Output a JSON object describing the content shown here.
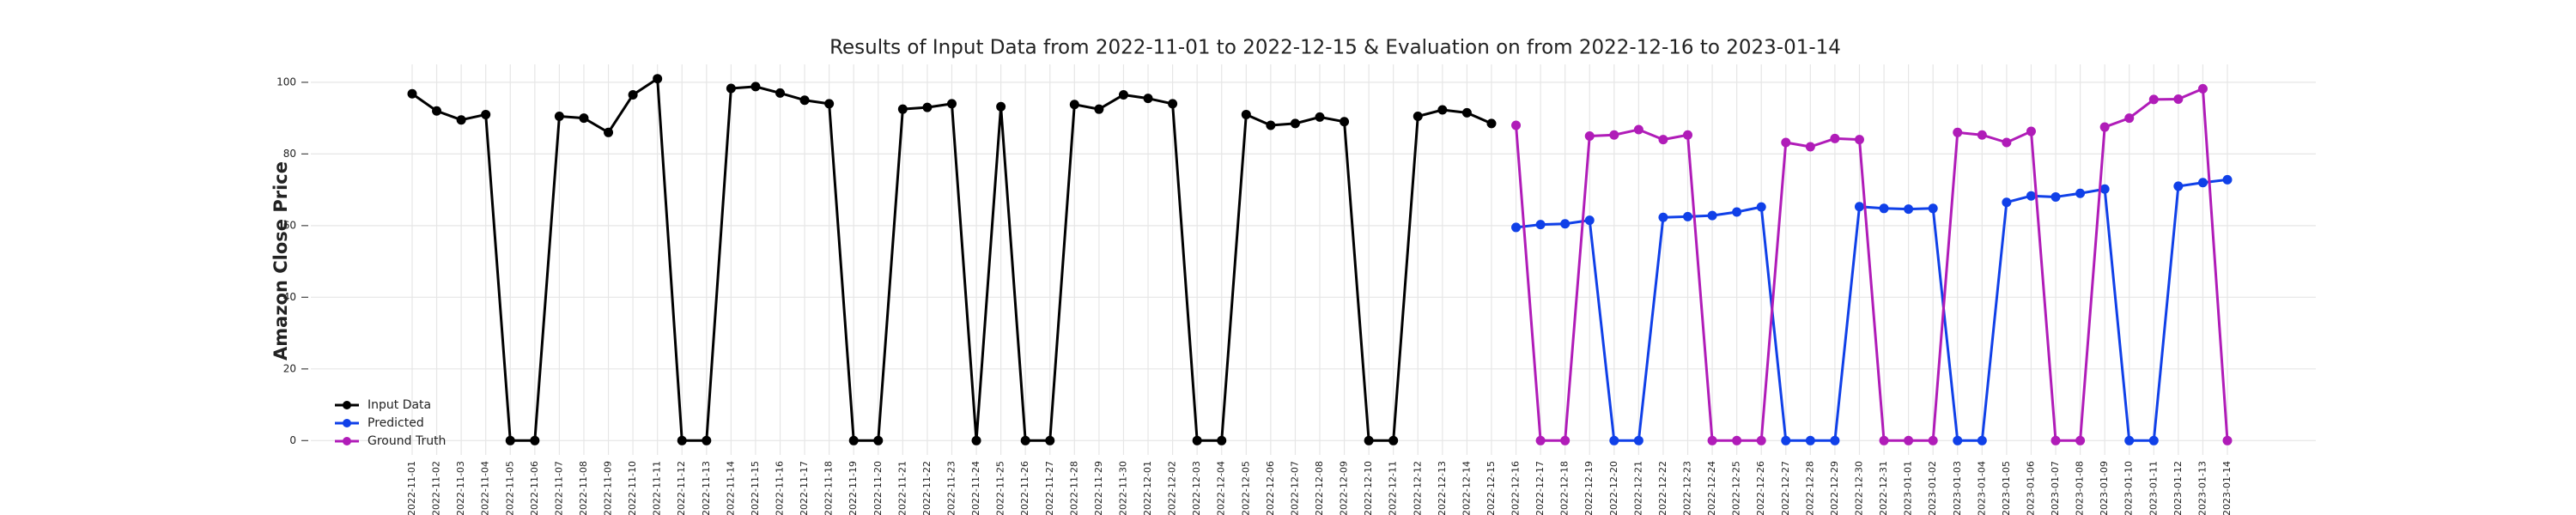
{
  "chart_data": {
    "type": "line",
    "title": "Results of Input Data from 2022-11-01 to 2022-12-15 & Evaluation on from 2022-12-16 to 2023-01-14",
    "y_label": "Amazon Close Price",
    "categories": [
      "2022-11-01",
      "2022-11-02",
      "2022-11-03",
      "2022-11-04",
      "2022-11-05",
      "2022-11-06",
      "2022-11-07",
      "2022-11-08",
      "2022-11-09",
      "2022-11-10",
      "2022-11-11",
      "2022-11-12",
      "2022-11-13",
      "2022-11-14",
      "2022-11-15",
      "2022-11-16",
      "2022-11-17",
      "2022-11-18",
      "2022-11-19",
      "2022-11-20",
      "2022-11-21",
      "2022-11-22",
      "2022-11-23",
      "2022-11-24",
      "2022-11-25",
      "2022-11-26",
      "2022-11-27",
      "2022-11-28",
      "2022-11-29",
      "2022-11-30",
      "2022-12-01",
      "2022-12-02",
      "2022-12-03",
      "2022-12-04",
      "2022-12-05",
      "2022-12-06",
      "2022-12-07",
      "2022-12-08",
      "2022-12-09",
      "2022-12-10",
      "2022-12-11",
      "2022-12-12",
      "2022-12-13",
      "2022-12-14",
      "2022-12-15",
      "2022-12-16",
      "2022-12-17",
      "2022-12-18",
      "2022-12-19",
      "2022-12-20",
      "2022-12-21",
      "2022-12-22",
      "2022-12-23",
      "2022-12-24",
      "2022-12-25",
      "2022-12-26",
      "2022-12-27",
      "2022-12-28",
      "2022-12-29",
      "2022-12-30",
      "2022-12-31",
      "2023-01-01",
      "2023-01-02",
      "2023-01-03",
      "2023-01-04",
      "2023-01-05",
      "2023-01-06",
      "2023-01-07",
      "2023-01-08",
      "2023-01-09",
      "2023-01-10",
      "2023-01-11",
      "2023-01-12",
      "2023-01-13",
      "2023-01-14"
    ],
    "series": [
      {
        "name": "Input Data",
        "color": "#000000",
        "values": [
          96.8,
          92,
          89.5,
          91,
          0,
          0,
          90.5,
          90,
          86,
          96.5,
          101,
          0,
          0,
          98.3,
          98.8,
          97,
          95,
          94,
          0,
          0,
          92.5,
          93,
          94,
          0,
          93.2,
          0,
          0,
          93.8,
          92.5,
          96.5,
          95.5,
          94,
          0,
          0,
          91,
          88,
          88.5,
          90.3,
          89,
          0,
          0,
          90.5,
          92.3,
          91.5,
          88.5,
          null,
          null,
          null,
          null,
          null,
          null,
          null,
          null,
          null,
          null,
          null,
          null,
          null,
          null,
          null,
          null,
          null,
          null,
          null,
          null,
          null,
          null,
          null,
          null,
          null,
          null,
          null,
          null,
          null,
          null
        ]
      },
      {
        "name": "Predicted",
        "color": "#1040e8",
        "values": [
          null,
          null,
          null,
          null,
          null,
          null,
          null,
          null,
          null,
          null,
          null,
          null,
          null,
          null,
          null,
          null,
          null,
          null,
          null,
          null,
          null,
          null,
          null,
          null,
          null,
          null,
          null,
          null,
          null,
          null,
          null,
          null,
          null,
          null,
          null,
          null,
          null,
          null,
          null,
          null,
          null,
          null,
          null,
          null,
          null,
          59.5,
          60.3,
          60.5,
          61.5,
          0,
          0,
          62.3,
          62.5,
          62.8,
          63.8,
          65.2,
          0,
          0,
          0,
          65.3,
          64.8,
          64.6,
          64.8,
          0,
          0,
          66.5,
          68.3,
          68,
          69,
          70.2,
          0,
          0,
          71,
          72,
          72.8
        ]
      },
      {
        "name": "Ground Truth",
        "color": "#b01cb8",
        "values": [
          null,
          null,
          null,
          null,
          null,
          null,
          null,
          null,
          null,
          null,
          null,
          null,
          null,
          null,
          null,
          null,
          null,
          null,
          null,
          null,
          null,
          null,
          null,
          null,
          null,
          null,
          null,
          null,
          null,
          null,
          null,
          null,
          null,
          null,
          null,
          null,
          null,
          null,
          null,
          null,
          null,
          null,
          null,
          null,
          null,
          88,
          0,
          0,
          85,
          85.3,
          86.8,
          84,
          85.3,
          0,
          0,
          0,
          83.2,
          82,
          84.3,
          84,
          0,
          0,
          0,
          86,
          85.3,
          83.2,
          86.3,
          0,
          0,
          87.5,
          90,
          95.2,
          95.3,
          98.2,
          0
        ]
      }
    ],
    "ylim": [
      -4,
      105
    ],
    "yticks": [
      0,
      20,
      40,
      60,
      80,
      100
    ],
    "grid": true,
    "legend": "lower left"
  }
}
